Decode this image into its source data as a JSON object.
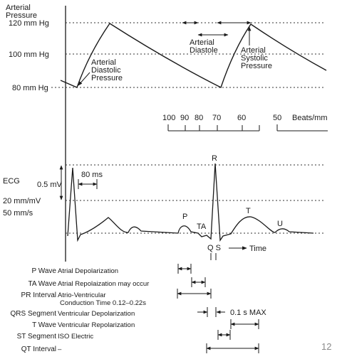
{
  "top_labels": {
    "arterial": "Arterial",
    "pressure": "Pressure",
    "p120": "120 mm Hg",
    "p100": "100 mm Hg",
    "p80": "80 mm Hg",
    "diastolic_pressure": [
      "Arterial",
      "Diastolic",
      "Pressure"
    ],
    "arterial_diastole": [
      "Arterial",
      "Diastole"
    ],
    "systolic_pressure": [
      "Arterial",
      "Systolic",
      "Pressure"
    ]
  },
  "beats_scale": {
    "ticks": [
      "100",
      "90",
      "80",
      "70",
      "60",
      "50"
    ],
    "unit": "Beats/mm"
  },
  "ecg_labels": {
    "ecg": "ECG",
    "mv": "0.5 mV",
    "ms": "80 ms",
    "mmmv": "20 mm/mV",
    "mms": "50 mm/s",
    "P": "P",
    "R": "R",
    "T": "T",
    "U": "U",
    "TA": "TA",
    "QS": "Q S",
    "time": "Time"
  },
  "legend": [
    {
      "term": "P Wave",
      "desc": "Atrial Depolarization",
      "desc2": ""
    },
    {
      "term": "TA Wave",
      "desc": "Atrial Repolaization may occur",
      "desc2": ""
    },
    {
      "term": "PR Interval",
      "desc": "Atrio-Ventricular",
      "desc2": "Conduction Time 0.12–0.22s"
    },
    {
      "term": "QRS Segment",
      "desc": "Ventricular Depolarization",
      "desc2": ""
    },
    {
      "term": "T Wave",
      "desc": "Ventricular Repolarization",
      "desc2": ""
    },
    {
      "term": "ST Segment",
      "desc": "ISO Electric",
      "desc2": ""
    },
    {
      "term": "QT Interval",
      "desc": "",
      "desc2": ""
    }
  ],
  "qrs_max": "0.1 s MAX",
  "page_number": "12"
}
